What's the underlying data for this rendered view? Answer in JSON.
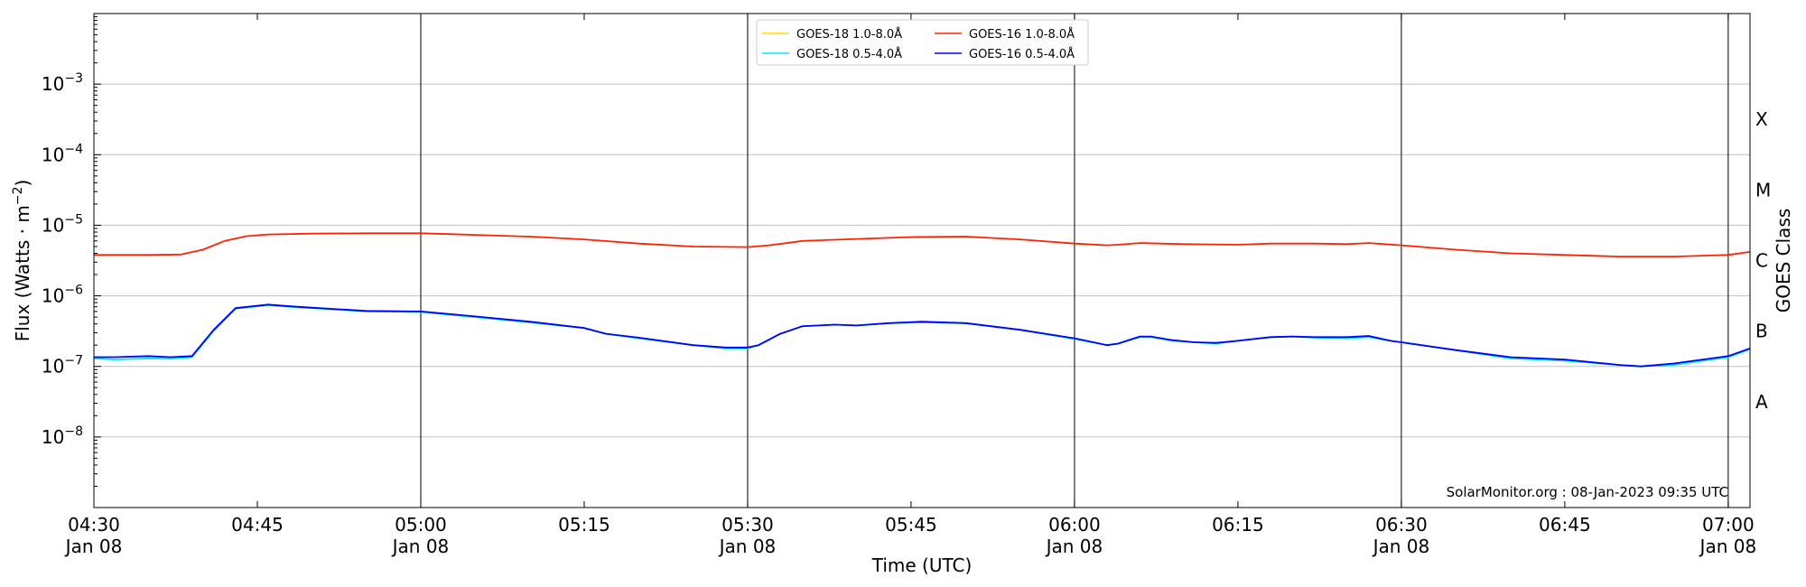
{
  "chart_data": {
    "type": "line",
    "title": "",
    "xlabel": "Time (UTC)",
    "ylabel_prefix": "Flux (Watts · m",
    "ylabel_exp": "−2",
    "ylabel_suffix": ")",
    "y2label": "GOES Class",
    "yscale": "log",
    "xlim": [
      "04:30",
      "07:02"
    ],
    "ylim": [
      1e-09,
      0.01
    ],
    "grid": "horizontal",
    "legend_position": "top-center",
    "credit": "SolarMonitor.org : 08-Jan-2023 09:35 UTC",
    "x_ticks": [
      {
        "t": "04:30",
        "label": "04:30",
        "sub": "Jan 08"
      },
      {
        "t": "04:45",
        "label": "04:45",
        "sub": ""
      },
      {
        "t": "05:00",
        "label": "05:00",
        "sub": "Jan 08"
      },
      {
        "t": "05:15",
        "label": "05:15",
        "sub": ""
      },
      {
        "t": "05:30",
        "label": "05:30",
        "sub": "Jan 08"
      },
      {
        "t": "05:45",
        "label": "05:45",
        "sub": ""
      },
      {
        "t": "06:00",
        "label": "06:00",
        "sub": "Jan 08"
      },
      {
        "t": "06:15",
        "label": "06:15",
        "sub": ""
      },
      {
        "t": "06:30",
        "label": "06:30",
        "sub": "Jan 08"
      },
      {
        "t": "06:45",
        "label": "06:45",
        "sub": ""
      },
      {
        "t": "07:00",
        "label": "07:00",
        "sub": "Jan 08"
      }
    ],
    "vlines": [
      "05:00",
      "05:30",
      "06:00",
      "06:30",
      "07:00"
    ],
    "y_ticks": [
      {
        "exp": -8,
        "label": "10",
        "sup": "−8"
      },
      {
        "exp": -7,
        "label": "10",
        "sup": "−7"
      },
      {
        "exp": -6,
        "label": "10",
        "sup": "−6"
      },
      {
        "exp": -5,
        "label": "10",
        "sup": "−5"
      },
      {
        "exp": -4,
        "label": "10",
        "sup": "−4"
      },
      {
        "exp": -3,
        "label": "10",
        "sup": "−3"
      }
    ],
    "goes_classes": [
      {
        "label": "A",
        "exp": -7.5
      },
      {
        "label": "B",
        "exp": -6.5
      },
      {
        "label": "C",
        "exp": -5.5
      },
      {
        "label": "M",
        "exp": -4.5
      },
      {
        "label": "X",
        "exp": -3.5
      }
    ],
    "legend": [
      {
        "name": "GOES-18 1.0-8.0Å",
        "color": "#ffd700"
      },
      {
        "name": "GOES-18 0.5-4.0Å",
        "color": "#00e5ff"
      },
      {
        "name": "GOES-16 1.0-8.0Å",
        "color": "#ff2200"
      },
      {
        "name": "GOES-16 0.5-4.0Å",
        "color": "#0000ff"
      }
    ],
    "series": [
      {
        "name": "GOES-18 0.5-4.0Å",
        "color": "#00e5ff",
        "x": [
          "04:30",
          "04:32",
          "04:35",
          "04:37",
          "04:39",
          "04:41",
          "04:43",
          "04:46",
          "04:48",
          "04:50",
          "04:55",
          "05:00",
          "05:05",
          "05:10",
          "05:15",
          "05:17",
          "05:20",
          "05:25",
          "05:28",
          "05:30",
          "05:31",
          "05:33",
          "05:35",
          "05:38",
          "05:40",
          "05:43",
          "05:46",
          "05:50",
          "05:55",
          "06:00",
          "06:03",
          "06:04",
          "06:06",
          "06:07",
          "06:09",
          "06:11",
          "06:13",
          "06:15",
          "06:18",
          "06:20",
          "06:22",
          "06:25",
          "06:27",
          "06:29",
          "06:30",
          "06:35",
          "06:40",
          "06:45",
          "06:50",
          "06:52",
          "06:55",
          "07:00",
          "07:02"
        ],
        "y": [
          1.3e-07,
          1.25e-07,
          1.3e-07,
          1.28e-07,
          1.35e-07,
          3.2e-07,
          6.6e-07,
          7.4e-07,
          7e-07,
          6.7e-07,
          6e-07,
          5.9e-07,
          5e-07,
          4.2e-07,
          3.5e-07,
          2.9e-07,
          2.5e-07,
          2e-07,
          1.8e-07,
          1.8e-07,
          2e-07,
          2.9e-07,
          3.7e-07,
          3.9e-07,
          3.8e-07,
          4.1e-07,
          4.2e-07,
          4.1e-07,
          3.3e-07,
          2.45e-07,
          2e-07,
          2.1e-07,
          2.6e-07,
          2.6e-07,
          2.3e-07,
          2.2e-07,
          2.1e-07,
          2.3e-07,
          2.6e-07,
          2.65e-07,
          2.55e-07,
          2.5e-07,
          2.6e-07,
          2.3e-07,
          2.2e-07,
          1.7e-07,
          1.3e-07,
          1.2e-07,
          1.05e-07,
          1e-07,
          1.05e-07,
          1.35e-07,
          1.75e-07
        ]
      },
      {
        "name": "GOES-16 1.0-8.0Å",
        "color": "#ff2200",
        "x": [
          "04:30",
          "04:35",
          "04:38",
          "04:40",
          "04:42",
          "04:44",
          "04:46",
          "04:50",
          "04:55",
          "05:00",
          "05:05",
          "05:10",
          "05:15",
          "05:20",
          "05:25",
          "05:30",
          "05:32",
          "05:35",
          "05:40",
          "05:45",
          "05:50",
          "05:55",
          "06:00",
          "06:03",
          "06:04",
          "06:06",
          "06:10",
          "06:15",
          "06:18",
          "06:22",
          "06:25",
          "06:27",
          "06:30",
          "06:35",
          "06:40",
          "06:45",
          "06:50",
          "06:55",
          "07:00",
          "07:02"
        ],
        "y": [
          3.8e-06,
          3.8e-06,
          3.85e-06,
          4.5e-06,
          6e-06,
          7e-06,
          7.4e-06,
          7.6e-06,
          7.7e-06,
          7.7e-06,
          7.3e-06,
          6.9e-06,
          6.3e-06,
          5.5e-06,
          5e-06,
          4.9e-06,
          5.2e-06,
          6e-06,
          6.4e-06,
          6.8e-06,
          6.9e-06,
          6.3e-06,
          5.5e-06,
          5.2e-06,
          5.3e-06,
          5.6e-06,
          5.4e-06,
          5.3e-06,
          5.5e-06,
          5.5e-06,
          5.4e-06,
          5.6e-06,
          5.2e-06,
          4.5e-06,
          4e-06,
          3.8e-06,
          3.6e-06,
          3.6e-06,
          3.8e-06,
          4.2e-06
        ]
      },
      {
        "name": "GOES-16 0.5-4.0Å",
        "color": "#0000ff",
        "x": [
          "04:30",
          "04:32",
          "04:35",
          "04:37",
          "04:39",
          "04:41",
          "04:43",
          "04:46",
          "04:48",
          "04:50",
          "04:55",
          "05:00",
          "05:05",
          "05:10",
          "05:15",
          "05:17",
          "05:20",
          "05:25",
          "05:28",
          "05:30",
          "05:31",
          "05:33",
          "05:35",
          "05:38",
          "05:40",
          "05:43",
          "05:46",
          "05:50",
          "05:55",
          "06:00",
          "06:03",
          "06:04",
          "06:06",
          "06:07",
          "06:09",
          "06:11",
          "06:13",
          "06:15",
          "06:18",
          "06:20",
          "06:22",
          "06:25",
          "06:27",
          "06:29",
          "06:30",
          "06:35",
          "06:40",
          "06:45",
          "06:50",
          "06:52",
          "06:55",
          "07:00",
          "07:02"
        ],
        "y": [
          1.35e-07,
          1.35e-07,
          1.4e-07,
          1.35e-07,
          1.4e-07,
          3.3e-07,
          6.7e-07,
          7.5e-07,
          7.1e-07,
          6.8e-07,
          6.1e-07,
          6e-07,
          5.1e-07,
          4.3e-07,
          3.5e-07,
          2.9e-07,
          2.55e-07,
          2e-07,
          1.85e-07,
          1.85e-07,
          2e-07,
          2.9e-07,
          3.7e-07,
          3.9e-07,
          3.8e-07,
          4.1e-07,
          4.3e-07,
          4.1e-07,
          3.3e-07,
          2.5e-07,
          2e-07,
          2.1e-07,
          2.65e-07,
          2.65e-07,
          2.35e-07,
          2.2e-07,
          2.15e-07,
          2.3e-07,
          2.6e-07,
          2.65e-07,
          2.6e-07,
          2.6e-07,
          2.7e-07,
          2.3e-07,
          2.2e-07,
          1.7e-07,
          1.35e-07,
          1.25e-07,
          1.05e-07,
          1e-07,
          1.1e-07,
          1.4e-07,
          1.8e-07
        ]
      }
    ]
  }
}
